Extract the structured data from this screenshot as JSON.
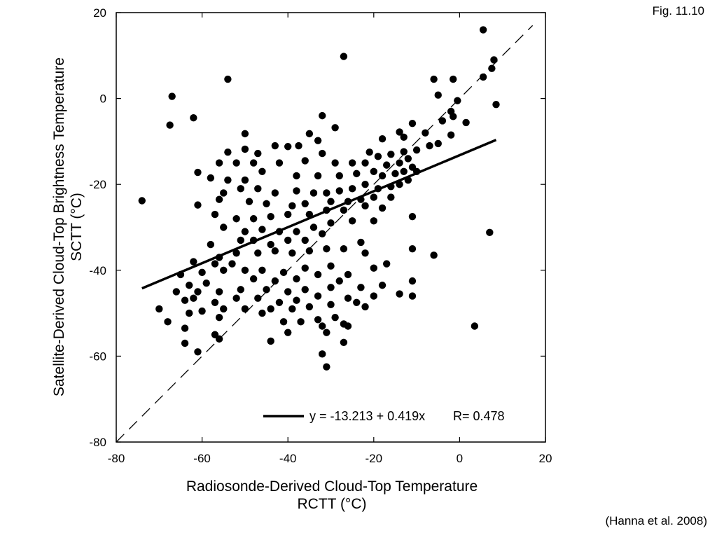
{
  "figure_label": "Fig. 11.10",
  "citation": "(Hanna et al. 2008)",
  "legend": {
    "equation": "y = -13.213 + 0.419x",
    "r_text": "R= 0.478"
  },
  "chart_data": {
    "type": "scatter",
    "title": "",
    "xlabel": [
      "Radiosonde-Derived Cloud-Top Temperature",
      "RCTT (°C)"
    ],
    "ylabel": [
      "Satellite-Derived Cloud-Top Brightness Temperature",
      "SCTT (°C)"
    ],
    "xlim": [
      -80,
      20
    ],
    "ylim": [
      -80,
      20
    ],
    "xticks": [
      -80,
      -60,
      -40,
      -20,
      0,
      20
    ],
    "yticks": [
      20,
      0,
      -20,
      -40,
      -60,
      -80
    ],
    "grid": false,
    "legend_position": "bottom-right",
    "fit_line": {
      "intercept": -13.213,
      "slope": 0.419,
      "r": 0.478,
      "x_range": [
        -74,
        8.5
      ]
    },
    "reference_line": {
      "type": "1:1",
      "x_range": [
        -80,
        17
      ]
    },
    "points": [
      [
        5.5,
        16
      ],
      [
        -27,
        9.8
      ],
      [
        -54,
        4.5
      ],
      [
        -67,
        0.5
      ],
      [
        -62,
        -4.5
      ],
      [
        -67.5,
        -6.2
      ],
      [
        -74,
        -23.8
      ],
      [
        -6,
        4.5
      ],
      [
        -1.5,
        4.5
      ],
      [
        8,
        9
      ],
      [
        7.5,
        7
      ],
      [
        5.5,
        5
      ],
      [
        -5,
        0.8
      ],
      [
        -0.5,
        -0.5
      ],
      [
        8.5,
        -1.4
      ],
      [
        -2,
        -3
      ],
      [
        -1.5,
        -4.2
      ],
      [
        -4,
        -5.2
      ],
      [
        1.5,
        -5.6
      ],
      [
        -11,
        -5.8
      ],
      [
        -14,
        -7.8
      ],
      [
        -8,
        -8
      ],
      [
        -2,
        -8.5
      ],
      [
        -32,
        -4
      ],
      [
        -29,
        -6.8
      ],
      [
        -35,
        -8.2
      ],
      [
        -50,
        -8.2
      ],
      [
        -13,
        -9
      ],
      [
        -18,
        -9.4
      ],
      [
        -33,
        -9.8
      ],
      [
        -37.5,
        -11
      ],
      [
        -40,
        -11.2
      ],
      [
        -43,
        -11
      ],
      [
        -50,
        -11.8
      ],
      [
        -54,
        -12.5
      ],
      [
        -47,
        -12.8
      ],
      [
        -32,
        -12.8
      ],
      [
        -21,
        -12.5
      ],
      [
        -5,
        -10.5
      ],
      [
        -7,
        -11
      ],
      [
        -10,
        -12
      ],
      [
        -13,
        -12.4
      ],
      [
        -16,
        -13
      ],
      [
        -19,
        -13.5
      ],
      [
        -12,
        -14
      ],
      [
        -14,
        -15
      ],
      [
        -17,
        -15.5
      ],
      [
        -22,
        -15
      ],
      [
        -25,
        -15
      ],
      [
        -29,
        -15
      ],
      [
        -36,
        -14.5
      ],
      [
        -42,
        -15
      ],
      [
        -48,
        -15
      ],
      [
        -52,
        -15
      ],
      [
        -56,
        -15
      ],
      [
        -11,
        -16
      ],
      [
        -13,
        -17
      ],
      [
        -15,
        -17.5
      ],
      [
        -18,
        -18
      ],
      [
        -10,
        -17
      ],
      [
        -20,
        -17
      ],
      [
        -24,
        -17.5
      ],
      [
        -28,
        -18
      ],
      [
        -33,
        -18
      ],
      [
        -38,
        -18
      ],
      [
        -46,
        -17
      ],
      [
        -50,
        -19
      ],
      [
        -54,
        -19
      ],
      [
        -58,
        -18.5
      ],
      [
        -61,
        -17.2
      ],
      [
        -12,
        -19
      ],
      [
        -14,
        -20
      ],
      [
        -16,
        -20.5
      ],
      [
        -19,
        -21
      ],
      [
        -22,
        -20
      ],
      [
        -25,
        -21
      ],
      [
        -28,
        -21.5
      ],
      [
        -31,
        -22
      ],
      [
        -34,
        -22
      ],
      [
        -38,
        -21.5
      ],
      [
        -43,
        -22
      ],
      [
        -47,
        -21
      ],
      [
        -51,
        -21
      ],
      [
        -55,
        -22
      ],
      [
        -20,
        -23
      ],
      [
        -23,
        -23.5
      ],
      [
        -26,
        -24
      ],
      [
        -30,
        -24
      ],
      [
        -36,
        -24.5
      ],
      [
        -39,
        -25
      ],
      [
        -45,
        -24.5
      ],
      [
        -49,
        -24
      ],
      [
        -56,
        -23.5
      ],
      [
        -61,
        -24.8
      ],
      [
        -16,
        -23
      ],
      [
        -22,
        -25
      ],
      [
        -27,
        -26
      ],
      [
        -31,
        -26
      ],
      [
        -35,
        -27
      ],
      [
        -40,
        -27
      ],
      [
        -44,
        -27.5
      ],
      [
        -48,
        -28
      ],
      [
        -52,
        -28
      ],
      [
        -57,
        -27
      ],
      [
        -18,
        -25.5
      ],
      [
        -11,
        -27.5
      ],
      [
        -20,
        -28.5
      ],
      [
        -25,
        -28.5
      ],
      [
        -30,
        -29
      ],
      [
        -34,
        -30
      ],
      [
        -38,
        -31
      ],
      [
        -42,
        -31
      ],
      [
        -46,
        -30.5
      ],
      [
        -50,
        -31
      ],
      [
        -55,
        -30
      ],
      [
        -32,
        -31.5
      ],
      [
        -36,
        -33
      ],
      [
        -40,
        -33
      ],
      [
        -44,
        -34
      ],
      [
        -48,
        -33
      ],
      [
        -51,
        -33
      ],
      [
        -58,
        -34
      ],
      [
        -23,
        -33.5
      ],
      [
        -27,
        -35
      ],
      [
        -31,
        -35
      ],
      [
        -35,
        -35.5
      ],
      [
        -39,
        -36
      ],
      [
        -43,
        -35.5
      ],
      [
        -47,
        -36
      ],
      [
        -52,
        -36
      ],
      [
        -56,
        -37
      ],
      [
        -11,
        -35
      ],
      [
        -22,
        -36
      ],
      [
        -6,
        -36.5
      ],
      [
        -53,
        -38.5
      ],
      [
        -57,
        -38.5
      ],
      [
        -62,
        -38
      ],
      [
        -17,
        -38.5
      ],
      [
        -30,
        -39
      ],
      [
        -36,
        -39.5
      ],
      [
        -41,
        -40.5
      ],
      [
        -46,
        -40
      ],
      [
        -50,
        -40
      ],
      [
        -55,
        -40
      ],
      [
        -60,
        -40.5
      ],
      [
        -65,
        -41
      ],
      [
        -20,
        -39.5
      ],
      [
        -26,
        -41
      ],
      [
        -33,
        -41
      ],
      [
        -38,
        -42
      ],
      [
        -43,
        -42.5
      ],
      [
        -48,
        -42
      ],
      [
        -28,
        -42.5
      ],
      [
        -11,
        -42.5
      ],
      [
        -59,
        -43
      ],
      [
        -63,
        -43.5
      ],
      [
        -18,
        -43.5
      ],
      [
        -23,
        -44
      ],
      [
        -30,
        -44
      ],
      [
        -36,
        -44.5
      ],
      [
        -40,
        -45
      ],
      [
        -45,
        -44.5
      ],
      [
        -51,
        -44.5
      ],
      [
        -56,
        -45
      ],
      [
        -61,
        -45
      ],
      [
        -66,
        -45
      ],
      [
        -14,
        -45.5
      ],
      [
        -20,
        -46
      ],
      [
        -26,
        -46.5
      ],
      [
        -33,
        -46
      ],
      [
        -38,
        -47
      ],
      [
        -42,
        -47.5
      ],
      [
        -47,
        -46.5
      ],
      [
        -52,
        -46.5
      ],
      [
        -57,
        -47.5
      ],
      [
        -62,
        -46.5
      ],
      [
        -11,
        -46
      ],
      [
        -24,
        -47.5
      ],
      [
        -64,
        -47
      ],
      [
        -22,
        -48.5
      ],
      [
        -30,
        -48
      ],
      [
        -35,
        -48.5
      ],
      [
        -39,
        -49
      ],
      [
        -44,
        -49
      ],
      [
        -50,
        -49
      ],
      [
        -55,
        -49
      ],
      [
        -60,
        -49.5
      ],
      [
        -70,
        -49
      ],
      [
        -46,
        -50
      ],
      [
        -63,
        -50
      ],
      [
        -29,
        -51
      ],
      [
        -33,
        -51.5
      ],
      [
        -37,
        -52
      ],
      [
        -41,
        -52
      ],
      [
        -56,
        -51
      ],
      [
        -68,
        -52
      ],
      [
        -27,
        -52.5
      ],
      [
        -32,
        -53
      ],
      [
        -64,
        -53.5
      ],
      [
        -26,
        -53
      ],
      [
        -31,
        -54.5
      ],
      [
        -40,
        -54.5
      ],
      [
        -57,
        -55
      ],
      [
        -56,
        -56
      ],
      [
        -27,
        -56.8
      ],
      [
        -64,
        -57
      ],
      [
        -44,
        -56.5
      ],
      [
        -61,
        -59
      ],
      [
        -32,
        -59.5
      ],
      [
        -31,
        -62.5
      ],
      [
        7,
        -31.2
      ],
      [
        3.5,
        -53
      ]
    ]
  }
}
